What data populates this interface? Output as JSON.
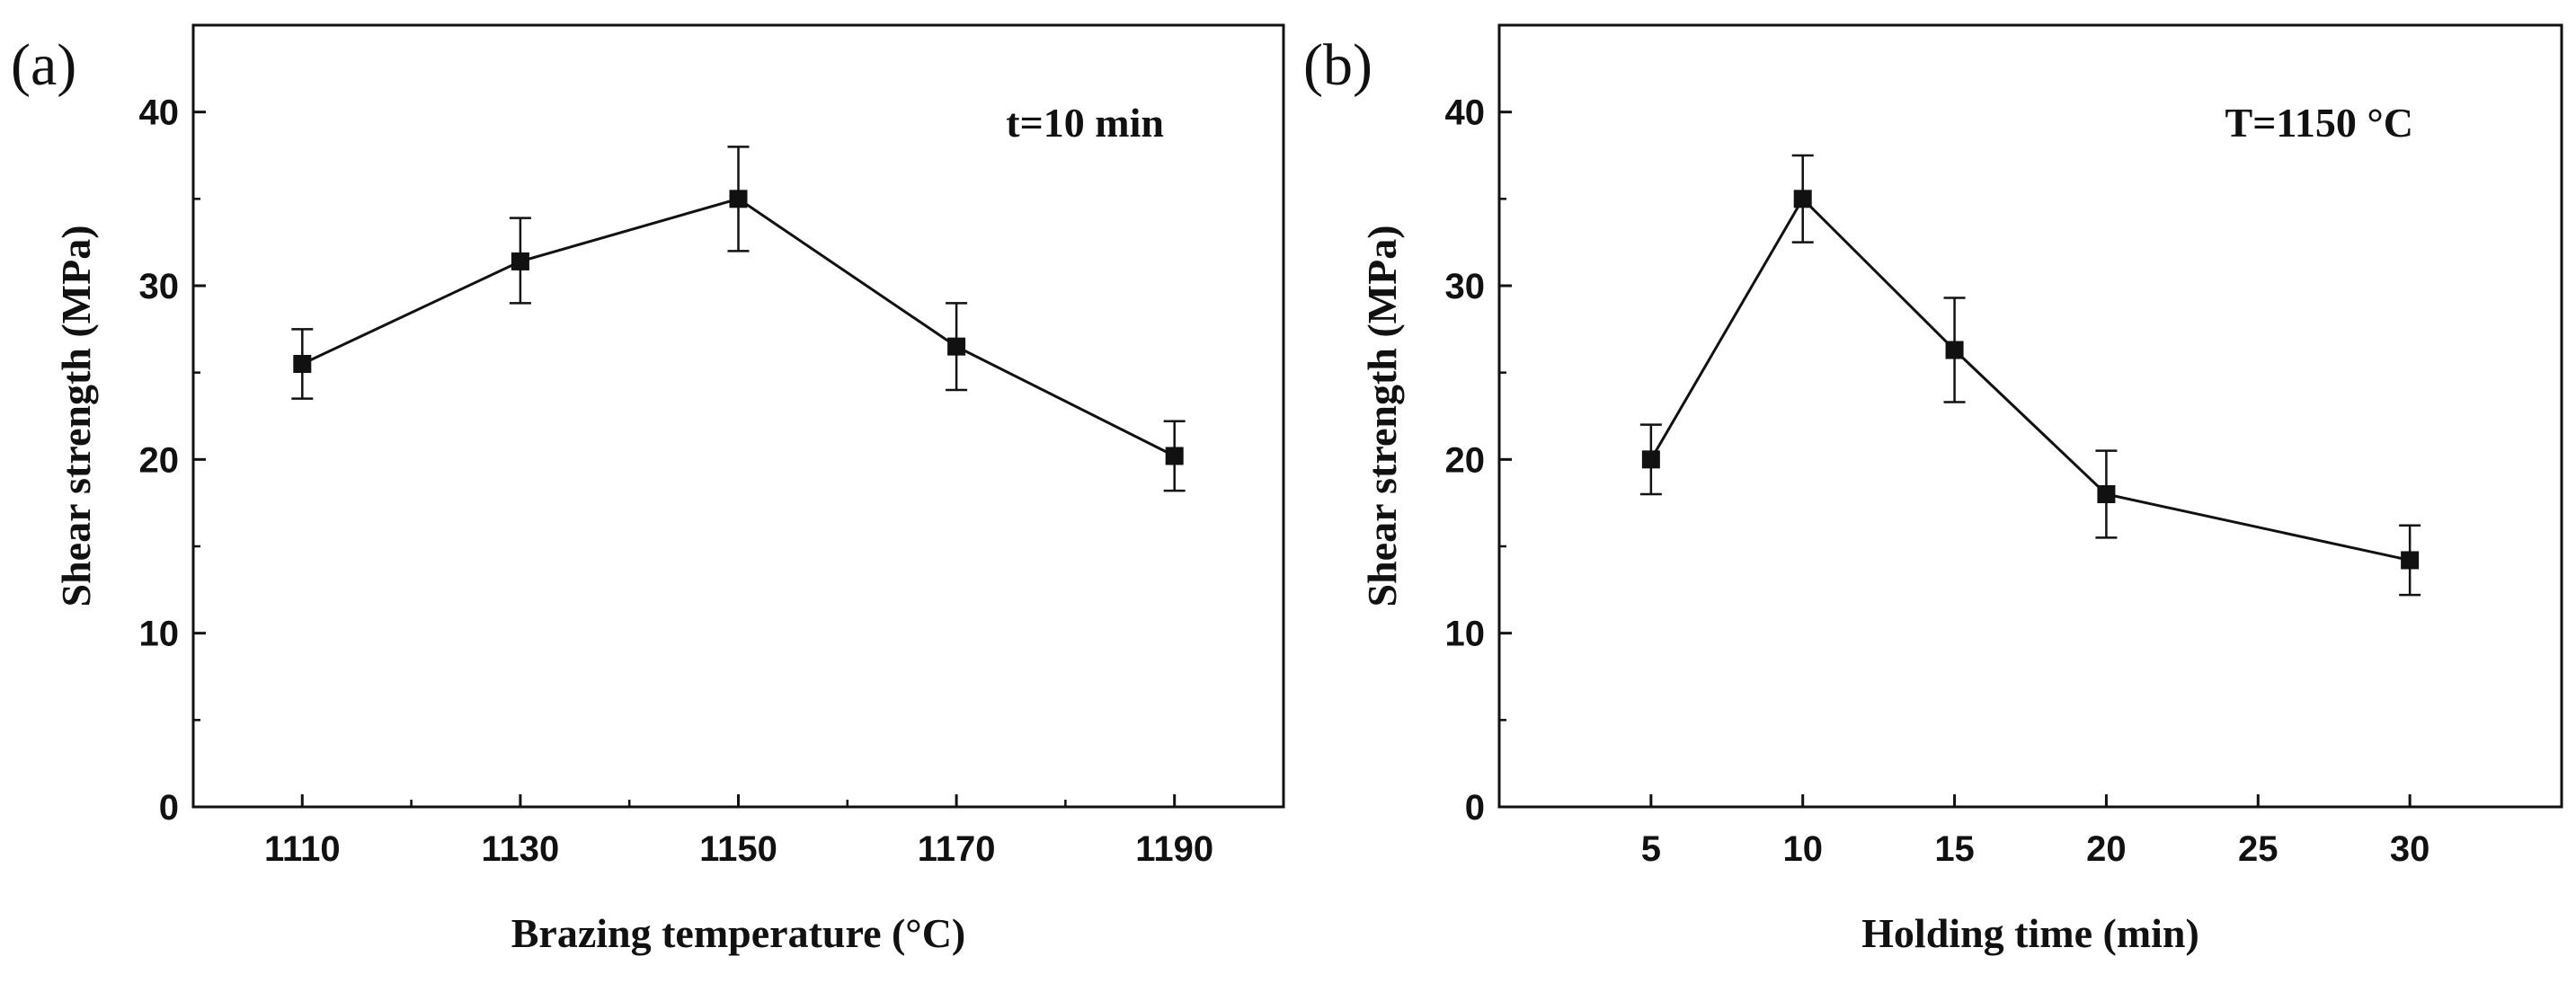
{
  "figure": {
    "background": "#ffffff",
    "ink": "#111111"
  },
  "chart_data": [
    {
      "type": "line",
      "panel_label": "(a)",
      "annotation": "t=10 min",
      "xlabel": "Brazing temperature (°C)",
      "ylabel": "Shear strength (MPa)",
      "xlim": [
        1100,
        1200
      ],
      "ylim": [
        0,
        45
      ],
      "xticks_major": [
        1110,
        1130,
        1150,
        1170,
        1190
      ],
      "xticks_minor": [
        1120,
        1140,
        1160,
        1180
      ],
      "yticks": [
        0,
        10,
        20,
        30,
        40
      ],
      "series": [
        {
          "name": "shear strength",
          "x": [
            1110,
            1130,
            1150,
            1170,
            1190
          ],
          "y": [
            25.5,
            31.4,
            35.0,
            26.5,
            20.2
          ],
          "err_low": [
            23.5,
            29.0,
            32.0,
            24.0,
            18.2
          ],
          "err_high": [
            27.5,
            33.9,
            38.0,
            29.0,
            22.2
          ]
        }
      ]
    },
    {
      "type": "line",
      "panel_label": "(b)",
      "annotation": "T=1150 °C",
      "xlabel": "Holding time (min)",
      "ylabel": "Shear strength (MPa)",
      "xlim": [
        0,
        35
      ],
      "ylim": [
        0,
        45
      ],
      "xticks_major": [
        5,
        10,
        15,
        20,
        25,
        30
      ],
      "xticks_minor": [],
      "yticks": [
        0,
        10,
        20,
        30,
        40
      ],
      "series": [
        {
          "name": "shear strength",
          "x": [
            5,
            10,
            15,
            20,
            30
          ],
          "y": [
            20.0,
            35.0,
            26.3,
            18.0,
            14.2
          ],
          "err_low": [
            18.0,
            32.5,
            23.3,
            15.5,
            12.2
          ],
          "err_high": [
            22.0,
            37.5,
            29.3,
            20.5,
            16.2
          ]
        }
      ]
    }
  ]
}
